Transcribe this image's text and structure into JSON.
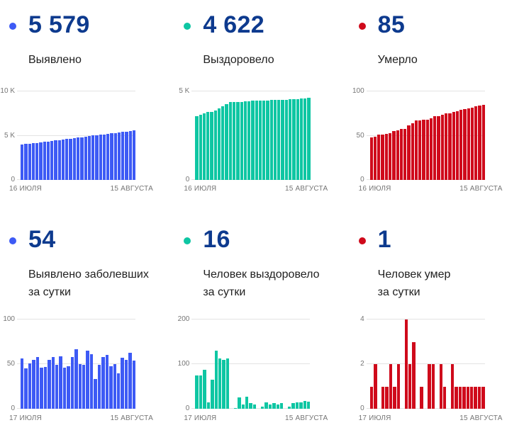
{
  "colors": {
    "detected": "#3D5AF5",
    "recovered": "#0EC6A3",
    "died": "#CF0A1B",
    "stat_number": "#0D3A8E",
    "axis_text": "#757575",
    "gridline": "#E3E3E3"
  },
  "cards": [
    {
      "value": "5 579",
      "label": "Выявлено",
      "dot_color": "#3D5AF5"
    },
    {
      "value": "4 622",
      "label": "Выздоровело",
      "dot_color": "#0EC6A3"
    },
    {
      "value": "85",
      "label": "Умерло",
      "dot_color": "#CF0A1B"
    },
    {
      "value": "54",
      "label": "Выявлено заболевших\nза сутки",
      "dot_color": "#3D5AF5"
    },
    {
      "value": "16",
      "label": "Человек выздоровело\nза сутки",
      "dot_color": "#0EC6A3"
    },
    {
      "value": "1",
      "label": "Человек умер\nза сутки",
      "dot_color": "#CF0A1B"
    }
  ],
  "chart_data": [
    {
      "type": "bar",
      "title": "Выявлено",
      "color": "#3D5AF5",
      "x_start_label": "16 ИЮЛЯ",
      "x_end_label": "15 АВГУСТА",
      "ylim": [
        0,
        10000
      ],
      "yticks": [
        {
          "value": 0,
          "label": "0"
        },
        {
          "value": 5000,
          "label": "5 K"
        },
        {
          "value": 10000,
          "label": "10 K"
        }
      ],
      "values": [
        3989,
        4045,
        4090,
        4141,
        4196,
        4254,
        4300,
        4347,
        4402,
        4460,
        4509,
        4568,
        4614,
        4662,
        4720,
        4787,
        4837,
        4886,
        4951,
        5012,
        5045,
        5094,
        5152,
        5212,
        5260,
        5310,
        5350,
        5407,
        5462,
        5525,
        5579
      ]
    },
    {
      "type": "bar",
      "title": "Выздоровело",
      "color": "#0EC6A3",
      "x_start_label": "16 ИЮЛЯ",
      "x_end_label": "15 АВГУСТА",
      "ylim": [
        0,
        5000
      ],
      "yticks": [
        {
          "value": 0,
          "label": "0"
        },
        {
          "value": 5000,
          "label": "5 K"
        }
      ],
      "values": [
        3607,
        3682,
        3757,
        3845,
        3860,
        3925,
        4055,
        4168,
        4278,
        4390,
        4390,
        4392,
        4417,
        4427,
        4454,
        4466,
        4476,
        4476,
        4481,
        4495,
        4505,
        4518,
        4528,
        4540,
        4540,
        4545,
        4558,
        4573,
        4588,
        4606,
        4622
      ]
    },
    {
      "type": "bar",
      "title": "Умерло",
      "color": "#CF0A1B",
      "x_start_label": "16 ИЮЛЯ",
      "x_end_label": "15 АВГУСТА",
      "ylim": [
        0,
        100
      ],
      "yticks": [
        {
          "value": 0,
          "label": "0"
        },
        {
          "value": 50,
          "label": "50"
        },
        {
          "value": 100,
          "label": "100"
        }
      ],
      "values": [
        48,
        49,
        51,
        51,
        52,
        53,
        55,
        56,
        58,
        58,
        62,
        64,
        67,
        67,
        68,
        68,
        70,
        72,
        72,
        74,
        75,
        75,
        77,
        78,
        79,
        80,
        81,
        82,
        83,
        84,
        85
      ]
    },
    {
      "type": "bar",
      "title": "Выявлено заболевших за сутки",
      "color": "#3D5AF5",
      "x_start_label": "17 ИЮЛЯ",
      "x_end_label": "15 АВГУСТА",
      "ylim": [
        0,
        100
      ],
      "yticks": [
        {
          "value": 0,
          "label": "0"
        },
        {
          "value": 50,
          "label": "50"
        },
        {
          "value": 100,
          "label": "100"
        }
      ],
      "values": [
        56,
        45,
        51,
        55,
        58,
        46,
        47,
        55,
        58,
        49,
        59,
        46,
        48,
        58,
        67,
        50,
        49,
        65,
        61,
        33,
        49,
        58,
        60,
        48,
        50,
        40,
        57,
        55,
        63,
        54
      ]
    },
    {
      "type": "bar",
      "title": "Человек выздоровело за сутки",
      "color": "#0EC6A3",
      "x_start_label": "17 ИЮЛЯ",
      "x_end_label": "15 АВГУСТА",
      "ylim": [
        0,
        200
      ],
      "yticks": [
        {
          "value": 0,
          "label": "0"
        },
        {
          "value": 100,
          "label": "100"
        },
        {
          "value": 200,
          "label": "200"
        }
      ],
      "values": [
        75,
        75,
        88,
        15,
        65,
        130,
        113,
        110,
        112,
        0,
        2,
        25,
        10,
        27,
        12,
        10,
        0,
        5,
        14,
        10,
        13,
        10,
        12,
        0,
        5,
        13,
        15,
        15,
        18,
        16
      ]
    },
    {
      "type": "bar",
      "title": "Человек умер за сутки",
      "color": "#CF0A1B",
      "x_start_label": "17 ИЮЛЯ",
      "x_end_label": "15 АВГУСТА",
      "ylim": [
        0,
        4
      ],
      "yticks": [
        {
          "value": 0,
          "label": "0"
        },
        {
          "value": 2,
          "label": "2"
        },
        {
          "value": 4,
          "label": "4"
        }
      ],
      "values": [
        1,
        2,
        0,
        1,
        1,
        2,
        1,
        2,
        0,
        4,
        2,
        3,
        0,
        1,
        0,
        2,
        2,
        0,
        2,
        1,
        0,
        2,
        1,
        1,
        1,
        1,
        1,
        1,
        1,
        1
      ]
    }
  ]
}
